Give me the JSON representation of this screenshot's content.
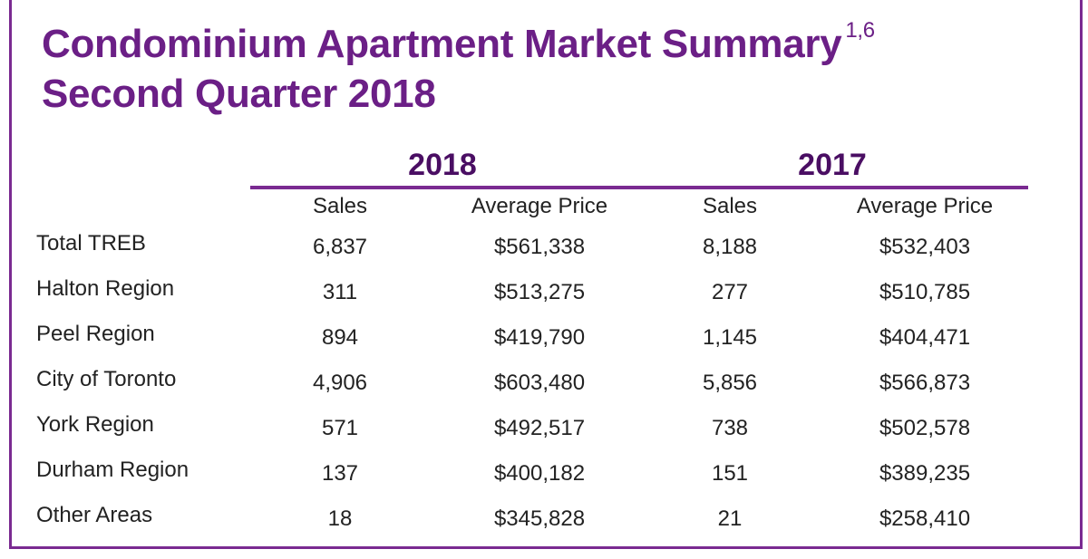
{
  "title": {
    "line1": "Condominium Apartment Market Summary",
    "superscript": "1,6",
    "line2": "Second Quarter 2018"
  },
  "years": [
    "2018",
    "2017"
  ],
  "column_headers": [
    "Sales",
    "Average Price",
    "Sales",
    "Average Price"
  ],
  "rows": [
    {
      "region": "Total TREB",
      "sales_2018": "6,837",
      "avg_price_2018": "$561,338",
      "sales_2017": "8,188",
      "avg_price_2017": "$532,403"
    },
    {
      "region": "Halton Region",
      "sales_2018": "311",
      "avg_price_2018": "$513,275",
      "sales_2017": "277",
      "avg_price_2017": "$510,785"
    },
    {
      "region": "Peel Region",
      "sales_2018": "894",
      "avg_price_2018": "$419,790",
      "sales_2017": "1,145",
      "avg_price_2017": "$404,471"
    },
    {
      "region": "City of Toronto",
      "sales_2018": "4,906",
      "avg_price_2018": "$603,480",
      "sales_2017": "5,856",
      "avg_price_2017": "$566,873"
    },
    {
      "region": "York Region",
      "sales_2018": "571",
      "avg_price_2018": "$492,517",
      "sales_2017": "738",
      "avg_price_2017": "$502,578"
    },
    {
      "region": "Durham Region",
      "sales_2018": "137",
      "avg_price_2018": "$400,182",
      "sales_2017": "151",
      "avg_price_2017": "$389,235"
    },
    {
      "region": "Other Areas",
      "sales_2018": "18",
      "avg_price_2018": "$345,828",
      "sales_2017": "21",
      "avg_price_2017": "$258,410"
    }
  ],
  "colors": {
    "title": "#6b1f86",
    "year": "#4a0e63",
    "rule": "#7a2a91",
    "border": "#7a2a91"
  }
}
